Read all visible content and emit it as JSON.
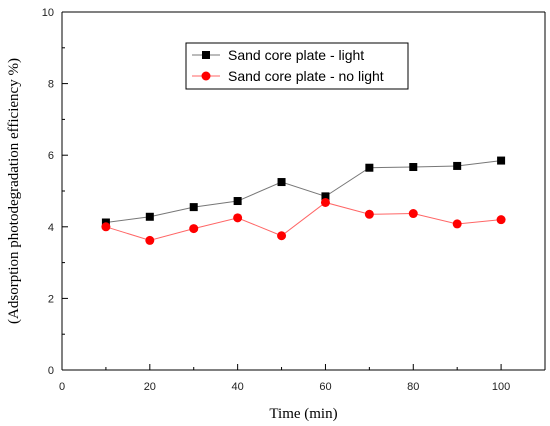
{
  "chart_data": {
    "type": "line",
    "title": "",
    "xlabel": "Time (min)",
    "ylabel": "(Adsorption photodegradation efficiency %)",
    "xlim": [
      0,
      110
    ],
    "ylim": [
      0,
      10
    ],
    "xticks": [
      0,
      20,
      40,
      60,
      80,
      100
    ],
    "yticks": [
      0,
      2,
      4,
      6,
      8,
      10
    ],
    "x": [
      10,
      20,
      30,
      40,
      50,
      60,
      70,
      80,
      90,
      100
    ],
    "grid": false,
    "legend_position": "top-center",
    "series": [
      {
        "name": "Sand core plate - light",
        "values": [
          4.12,
          4.28,
          4.55,
          4.72,
          5.25,
          4.85,
          5.65,
          5.67,
          5.7,
          5.85
        ],
        "color": "#000000",
        "line_color": "#777777",
        "marker": "square"
      },
      {
        "name": "Sand core plate - no light",
        "values": [
          4.0,
          3.62,
          3.95,
          4.25,
          3.75,
          4.68,
          4.35,
          4.37,
          4.08,
          4.2
        ],
        "color": "#ff0000",
        "line_color": "#ff6666",
        "marker": "circle"
      }
    ]
  }
}
